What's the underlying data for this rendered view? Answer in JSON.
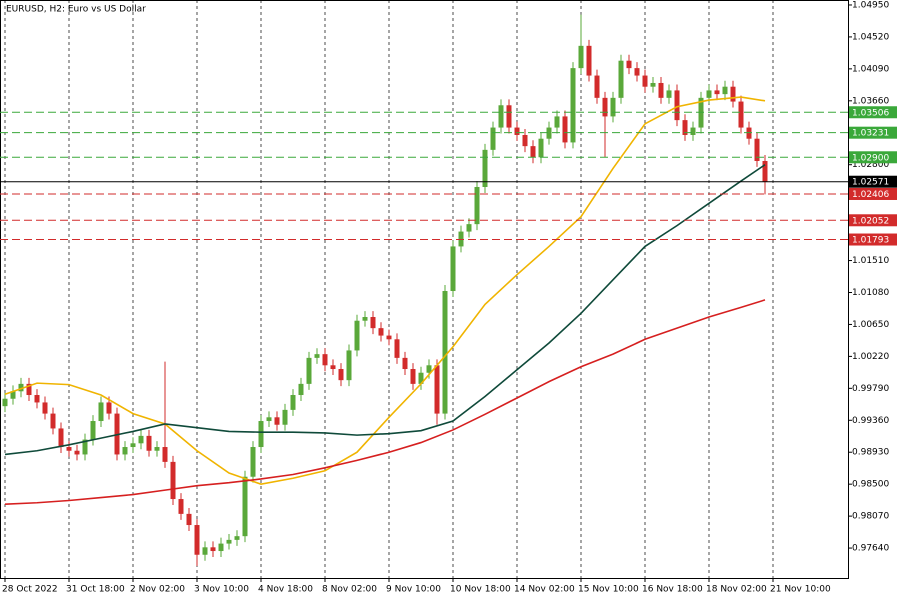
{
  "chart_data": {
    "type": "candlestick",
    "title": "EURUSD, H2:  Euro vs US Dollar",
    "up_color": "#5aa83a",
    "down_color": "#d22b2b",
    "ylim": [
      0.97237,
      1.05017
    ],
    "yticks": [
      {
        "value": 1.0495,
        "label": "1.04950"
      },
      {
        "value": 1.0452,
        "label": "1.04520"
      },
      {
        "value": 1.0409,
        "label": "1.04090"
      },
      {
        "value": 1.0366,
        "label": "1.03660"
      },
      {
        "value": 1.028,
        "label": "1.02800"
      },
      {
        "value": 1.0151,
        "label": "1.01510"
      },
      {
        "value": 1.0108,
        "label": "1.01080"
      },
      {
        "value": 1.0065,
        "label": "1.00650"
      },
      {
        "value": 1.0022,
        "label": "1.00220"
      },
      {
        "value": 0.9979,
        "label": "0.99790"
      },
      {
        "value": 0.9936,
        "label": "0.99360"
      },
      {
        "value": 0.9893,
        "label": "0.98930"
      },
      {
        "value": 0.985,
        "label": "0.98500"
      },
      {
        "value": 0.9807,
        "label": "0.98070"
      },
      {
        "value": 0.9764,
        "label": "0.97640"
      }
    ],
    "time_labels": [
      "28 Oct 2022",
      "31 Oct 18:00",
      "2 Nov 02:00",
      "3 Nov 10:00",
      "4 Nov 18:00",
      "8 Nov 02:00",
      "9 Nov 10:00",
      "10 Nov 18:00",
      "14 Nov 02:00",
      "15 Nov 10:00",
      "16 Nov 18:00",
      "18 Nov 02:00",
      "21 Nov 10:00"
    ],
    "vertical_grid": true,
    "candles": [
      [
        0.9955,
        0.9973,
        0.9947,
        0.9965
      ],
      [
        0.9965,
        0.9983,
        0.9957,
        0.9975
      ],
      [
        0.9975,
        0.9993,
        0.9967,
        0.9985
      ],
      [
        0.9985,
        0.9993,
        0.9962,
        0.997
      ],
      [
        0.997,
        0.9978,
        0.9952,
        0.996
      ],
      [
        0.996,
        0.9968,
        0.9937,
        0.9945
      ],
      [
        0.9945,
        0.9953,
        0.9917,
        0.9925
      ],
      [
        0.9925,
        0.9933,
        0.9892,
        0.99
      ],
      [
        0.99,
        0.9908,
        0.9887,
        0.9895
      ],
      [
        0.9895,
        0.9903,
        0.9882,
        0.989
      ],
      [
        0.989,
        0.9918,
        0.9882,
        0.991
      ],
      [
        0.991,
        0.9943,
        0.9902,
        0.9935
      ],
      [
        0.9935,
        0.9968,
        0.9927,
        0.996
      ],
      [
        0.996,
        0.9968,
        0.9937,
        0.9945
      ],
      [
        0.9945,
        0.9953,
        0.9882,
        0.989
      ],
      [
        0.989,
        0.9908,
        0.9882,
        0.99
      ],
      [
        0.99,
        0.9913,
        0.9892,
        0.9905
      ],
      [
        0.9905,
        0.9923,
        0.9897,
        0.9915
      ],
      [
        0.9915,
        0.9923,
        0.9887,
        0.9895
      ],
      [
        0.9895,
        0.9908,
        0.9887,
        0.99
      ],
      [
        0.99,
        1.0015,
        0.9872,
        0.988
      ],
      [
        0.988,
        0.9888,
        0.9822,
        0.983
      ],
      [
        0.983,
        0.9838,
        0.9802,
        0.981
      ],
      [
        0.981,
        0.9818,
        0.9787,
        0.9795
      ],
      [
        0.9795,
        0.9803,
        0.974,
        0.9755
      ],
      [
        0.9755,
        0.9773,
        0.9747,
        0.9765
      ],
      [
        0.9765,
        0.9773,
        0.9752,
        0.976
      ],
      [
        0.976,
        0.9778,
        0.9752,
        0.977
      ],
      [
        0.977,
        0.9783,
        0.9762,
        0.9775
      ],
      [
        0.9775,
        0.9788,
        0.9767,
        0.978
      ],
      [
        0.978,
        0.9868,
        0.9772,
        0.986
      ],
      [
        0.986,
        0.9908,
        0.9852,
        0.99
      ],
      [
        0.99,
        0.9943,
        0.9892,
        0.9935
      ],
      [
        0.9935,
        0.9948,
        0.9927,
        0.994
      ],
      [
        0.994,
        0.9948,
        0.9922,
        0.993
      ],
      [
        0.993,
        0.9958,
        0.9922,
        0.995
      ],
      [
        0.995,
        0.9978,
        0.9942,
        0.997
      ],
      [
        0.997,
        0.9993,
        0.9962,
        0.9985
      ],
      [
        0.9985,
        1.0028,
        0.9977,
        1.002
      ],
      [
        1.002,
        1.0033,
        1.0012,
        1.0025
      ],
      [
        1.0025,
        1.0033,
        1.0002,
        1.001
      ],
      [
        1.001,
        1.0018,
        0.9997,
        1.0005
      ],
      [
        1.0005,
        1.0013,
        0.9982,
        0.999
      ],
      [
        0.999,
        1.0038,
        0.9982,
        1.003
      ],
      [
        1.003,
        1.0078,
        1.0022,
        1.007
      ],
      [
        1.007,
        1.0083,
        1.0062,
        1.0075
      ],
      [
        1.0075,
        1.0083,
        1.0052,
        1.006
      ],
      [
        1.006,
        1.0068,
        1.0042,
        1.005
      ],
      [
        1.005,
        1.0058,
        1.0037,
        1.0045
      ],
      [
        1.0045,
        1.0053,
        1.0012,
        1.002
      ],
      [
        1.002,
        1.0028,
        0.9997,
        1.0005
      ],
      [
        1.0005,
        1.0013,
        0.9977,
        0.9985
      ],
      [
        0.9985,
        1.0008,
        0.9977,
        1.0
      ],
      [
        1.0,
        1.0018,
        0.9992,
        1.001
      ],
      [
        1.001,
        1.0018,
        0.993,
        0.9945
      ],
      [
        0.9945,
        1.0118,
        0.9937,
        1.011
      ],
      [
        1.011,
        1.0178,
        1.0102,
        1.017
      ],
      [
        1.017,
        1.0198,
        1.0162,
        1.019
      ],
      [
        1.019,
        1.0208,
        1.0182,
        1.02
      ],
      [
        1.02,
        1.0258,
        1.0192,
        1.025
      ],
      [
        1.025,
        1.0308,
        1.0242,
        1.03
      ],
      [
        1.03,
        1.0338,
        1.0292,
        1.033
      ],
      [
        1.033,
        1.0368,
        1.0322,
        1.036
      ],
      [
        1.036,
        1.0368,
        1.0322,
        1.033
      ],
      [
        1.033,
        1.0338,
        1.0312,
        1.032
      ],
      [
        1.032,
        1.0328,
        1.0297,
        1.0305
      ],
      [
        1.0305,
        1.0313,
        1.0282,
        1.029
      ],
      [
        1.029,
        1.0323,
        1.0282,
        1.0315
      ],
      [
        1.0315,
        1.0338,
        1.0307,
        1.033
      ],
      [
        1.033,
        1.0353,
        1.0322,
        1.0345
      ],
      [
        1.0345,
        1.0353,
        1.0302,
        1.031
      ],
      [
        1.031,
        1.0418,
        1.0302,
        1.041
      ],
      [
        1.041,
        1.0482,
        1.0402,
        1.044
      ],
      [
        1.044,
        1.0448,
        1.0392,
        1.04
      ],
      [
        1.04,
        1.0408,
        1.0362,
        1.037
      ],
      [
        1.037,
        1.0378,
        1.029,
        1.0345
      ],
      [
        1.0345,
        1.0378,
        1.0337,
        1.037
      ],
      [
        1.037,
        1.0428,
        1.0362,
        1.042
      ],
      [
        1.042,
        1.0428,
        1.0402,
        1.041
      ],
      [
        1.041,
        1.0418,
        1.0392,
        1.04
      ],
      [
        1.04,
        1.0408,
        1.0377,
        1.0385
      ],
      [
        1.0385,
        1.0398,
        1.0377,
        1.039
      ],
      [
        1.039,
        1.0398,
        1.0362,
        1.037
      ],
      [
        1.037,
        1.0388,
        1.0362,
        1.038
      ],
      [
        1.038,
        1.0388,
        1.0332,
        1.034
      ],
      [
        1.034,
        1.0348,
        1.0312,
        1.032
      ],
      [
        1.032,
        1.0338,
        1.0312,
        1.033
      ],
      [
        1.033,
        1.0378,
        1.0322,
        1.037
      ],
      [
        1.037,
        1.0388,
        1.0362,
        1.038
      ],
      [
        1.038,
        1.0388,
        1.0367,
        1.0375
      ],
      [
        1.0375,
        1.0393,
        1.0367,
        1.0385
      ],
      [
        1.0385,
        1.0393,
        1.0357,
        1.0365
      ],
      [
        1.0365,
        1.0373,
        1.0322,
        1.033
      ],
      [
        1.033,
        1.0338,
        1.0307,
        1.0315
      ],
      [
        1.0315,
        1.0323,
        1.0277,
        1.0285
      ],
      [
        1.0285,
        1.0293,
        1.024,
        1.0257
      ]
    ],
    "moving_averages": [
      {
        "color": "#f0b400",
        "x": [
          0,
          4,
          8,
          12,
          16,
          20,
          24,
          28,
          32,
          36,
          40,
          44,
          48,
          52,
          56,
          60,
          64,
          68,
          72,
          76,
          80,
          84,
          88,
          92,
          95
        ],
        "values": [
          0.9971,
          0.9986,
          0.9984,
          0.997,
          0.9945,
          0.9931,
          0.9895,
          0.9865,
          0.985,
          0.9858,
          0.9868,
          0.9893,
          0.994,
          0.9985,
          1.0035,
          1.0092,
          1.0132,
          1.017,
          1.021,
          1.0275,
          1.0335,
          1.0358,
          1.0367,
          1.0371,
          1.0366
        ]
      },
      {
        "color": "#0f4a3a",
        "x": [
          0,
          4,
          8,
          12,
          16,
          20,
          24,
          28,
          32,
          36,
          40,
          44,
          48,
          52,
          56,
          60,
          64,
          68,
          72,
          76,
          80,
          84,
          88,
          92,
          95
        ],
        "values": [
          0.989,
          0.9895,
          0.9903,
          0.9912,
          0.9921,
          0.9931,
          0.9926,
          0.9921,
          0.992,
          0.992,
          0.9919,
          0.9916,
          0.9918,
          0.9922,
          0.9935,
          0.9968,
          1.0004,
          1.004,
          1.008,
          1.0125,
          1.017,
          1.0198,
          1.0228,
          1.0258,
          1.028
        ]
      },
      {
        "color": "#d61f1f",
        "x": [
          0,
          4,
          8,
          12,
          16,
          20,
          24,
          28,
          32,
          36,
          40,
          44,
          48,
          52,
          56,
          60,
          64,
          68,
          72,
          76,
          80,
          84,
          88,
          92,
          95
        ],
        "values": [
          0.9823,
          0.9825,
          0.9828,
          0.9832,
          0.9836,
          0.9842,
          0.9848,
          0.9852,
          0.9857,
          0.9863,
          0.9872,
          0.9882,
          0.9893,
          0.9906,
          0.9923,
          0.9944,
          0.9966,
          0.9988,
          1.0008,
          1.0025,
          1.0045,
          1.006,
          1.0075,
          1.0088,
          1.0098
        ]
      }
    ],
    "levels": [
      {
        "value": 1.03506,
        "label": "1.03506",
        "color": "#3aa83a",
        "style": "dashed"
      },
      {
        "value": 1.03231,
        "label": "1.03231",
        "color": "#3aa83a",
        "style": "dashed"
      },
      {
        "value": 1.029,
        "label": "1.02900",
        "color": "#3aa83a",
        "style": "dashed"
      },
      {
        "value": 1.02571,
        "label": "1.02571",
        "color": "#000000",
        "style": "solid"
      },
      {
        "value": 1.02406,
        "label": "1.02406",
        "color": "#d22b2b",
        "style": "dashed"
      },
      {
        "value": 1.02052,
        "label": "1.02052",
        "color": "#d22b2b",
        "style": "dashed"
      },
      {
        "value": 1.01793,
        "label": "1.01793",
        "color": "#d22b2b",
        "style": "dashed"
      }
    ]
  }
}
